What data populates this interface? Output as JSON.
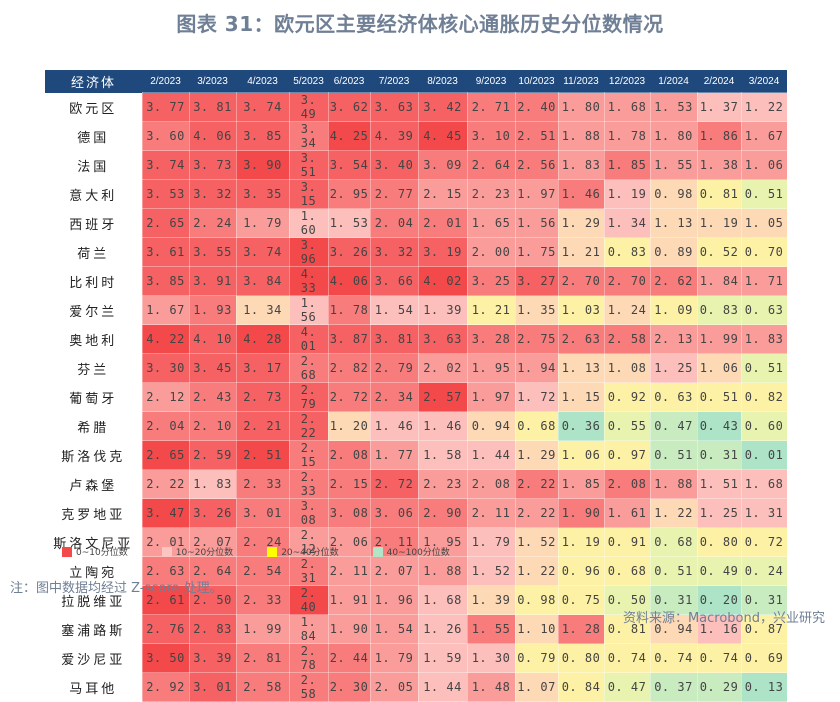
{
  "title": "图表 31：欧元区主要经济体核心通胀历史分位数情况",
  "table": {
    "row_header_label": "经济体",
    "columns": [
      "2/2023",
      "3/2023",
      "4/2023",
      "5/2023",
      "6/2023",
      "7/2023",
      "8/2023",
      "9/2023",
      "10/2023",
      "11/2023",
      "12/2023",
      "1/2024",
      "2/2024",
      "3/2024"
    ]
  },
  "legend": [
    {
      "label": "0~10分位数",
      "color": "#f4494b"
    },
    {
      "label": "10~20分位数",
      "color": "#fcc5c2"
    },
    {
      "label": "20~40分位数",
      "color": "#ffff00"
    },
    {
      "label": "40~100分位数",
      "color": "#b2e4c8"
    }
  ],
  "note": "注：图中数据均经过 Z-score 处理。",
  "source": "资料来源：Macrobond，兴业研究",
  "chart_data": {
    "type": "heatmap",
    "title": "图表 31：欧元区主要经济体核心通胀历史分位数情况",
    "xlabel": "",
    "ylabel": "经济体",
    "x": [
      "2/2023",
      "3/2023",
      "4/2023",
      "5/2023",
      "6/2023",
      "7/2023",
      "8/2023",
      "9/2023",
      "10/2023",
      "11/2023",
      "12/2023",
      "1/2024",
      "2/2024",
      "3/2024"
    ],
    "legend_position": "bottom",
    "legend": [
      "0~10分位数",
      "10~20分位数",
      "20~40分位数",
      "40~100分位数"
    ],
    "rows": [
      {
        "name": "欧元区",
        "values": [
          3.77,
          3.81,
          3.74,
          3.49,
          3.62,
          3.63,
          3.42,
          2.71,
          2.4,
          1.8,
          1.68,
          1.53,
          1.37,
          1.22
        ],
        "colors": [
          "b",
          "b",
          "b",
          "b",
          "b",
          "b",
          "b",
          "c",
          "c",
          "d",
          "d",
          "d",
          "e",
          "e"
        ]
      },
      {
        "name": "德国",
        "values": [
          3.6,
          4.06,
          3.85,
          3.34,
          4.25,
          4.39,
          4.45,
          3.1,
          2.51,
          1.88,
          1.78,
          1.8,
          1.86,
          1.67
        ],
        "colors": [
          "c",
          "b",
          "b",
          "c",
          "a",
          "b",
          "a",
          "c",
          "c",
          "d",
          "d",
          "d",
          "c",
          "d"
        ]
      },
      {
        "name": "法国",
        "values": [
          3.74,
          3.73,
          3.9,
          3.51,
          3.54,
          3.4,
          3.09,
          2.64,
          2.56,
          1.83,
          1.85,
          1.55,
          1.38,
          1.06
        ],
        "colors": [
          "b",
          "b",
          "a",
          "b",
          "b",
          "b",
          "c",
          "c",
          "c",
          "d",
          "c",
          "d",
          "d",
          "d"
        ]
      },
      {
        "name": "意大利",
        "values": [
          3.53,
          3.32,
          3.35,
          3.15,
          2.95,
          2.77,
          2.15,
          2.23,
          1.97,
          1.46,
          1.19,
          0.98,
          0.81,
          0.51
        ],
        "colors": [
          "b",
          "b",
          "b",
          "b",
          "c",
          "c",
          "d",
          "d",
          "d",
          "c",
          "e",
          "p",
          "y",
          "l"
        ]
      },
      {
        "name": "西班牙",
        "values": [
          2.65,
          2.24,
          1.79,
          1.6,
          1.53,
          2.04,
          2.01,
          1.65,
          1.56,
          1.29,
          1.34,
          1.13,
          1.19,
          1.05
        ],
        "colors": [
          "b",
          "c",
          "d",
          "e",
          "e",
          "c",
          "c",
          "d",
          "d",
          "p",
          "e",
          "p",
          "p",
          "p"
        ]
      },
      {
        "name": "荷兰",
        "values": [
          3.61,
          3.55,
          3.74,
          3.96,
          3.26,
          3.32,
          3.19,
          2.0,
          1.75,
          1.21,
          0.83,
          0.89,
          0.52,
          0.7
        ],
        "colors": [
          "b",
          "b",
          "b",
          "a",
          "b",
          "b",
          "b",
          "d",
          "d",
          "p",
          "y",
          "p",
          "y",
          "y"
        ]
      },
      {
        "name": "比利时",
        "values": [
          3.85,
          3.91,
          3.84,
          4.33,
          4.06,
          3.66,
          4.02,
          3.25,
          3.27,
          2.7,
          2.7,
          2.62,
          1.84,
          1.71
        ],
        "colors": [
          "b",
          "b",
          "b",
          "a",
          "a",
          "b",
          "a",
          "c",
          "b",
          "c",
          "c",
          "c",
          "d",
          "d"
        ]
      },
      {
        "name": "爱尔兰",
        "values": [
          1.67,
          1.93,
          1.34,
          1.56,
          1.78,
          1.54,
          1.39,
          1.21,
          1.35,
          1.03,
          1.24,
          1.09,
          0.83,
          0.63
        ],
        "colors": [
          "d",
          "c",
          "p",
          "e",
          "c",
          "e",
          "e",
          "y",
          "p",
          "y",
          "p",
          "y",
          "l",
          "l"
        ]
      },
      {
        "name": "奥地利",
        "values": [
          4.22,
          4.1,
          4.28,
          4.01,
          3.87,
          3.81,
          3.63,
          3.28,
          2.75,
          2.63,
          2.58,
          2.13,
          1.99,
          1.83
        ],
        "colors": [
          "a",
          "b",
          "a",
          "b",
          "b",
          "b",
          "b",
          "c",
          "c",
          "c",
          "c",
          "d",
          "d",
          "d"
        ]
      },
      {
        "name": "芬兰",
        "values": [
          3.3,
          3.45,
          3.17,
          2.68,
          2.82,
          2.79,
          2.02,
          1.95,
          1.94,
          1.13,
          1.08,
          1.25,
          1.06,
          0.51
        ],
        "colors": [
          "b",
          "b",
          "b",
          "c",
          "c",
          "c",
          "d",
          "d",
          "d",
          "p",
          "p",
          "e",
          "p",
          "l"
        ]
      },
      {
        "name": "葡萄牙",
        "values": [
          2.12,
          2.43,
          2.73,
          2.79,
          2.72,
          2.34,
          2.57,
          1.97,
          1.72,
          1.15,
          0.92,
          0.63,
          0.51,
          0.82
        ],
        "colors": [
          "d",
          "c",
          "b",
          "b",
          "c",
          "c",
          "a",
          "d",
          "e",
          "p",
          "y",
          "y",
          "y",
          "y"
        ]
      },
      {
        "name": "希腊",
        "values": [
          2.04,
          2.1,
          2.21,
          2.22,
          1.2,
          1.46,
          1.46,
          0.94,
          0.68,
          0.36,
          0.55,
          0.47,
          0.43,
          0.6
        ],
        "colors": [
          "c",
          "c",
          "b",
          "b",
          "p",
          "e",
          "e",
          "p",
          "y",
          "t",
          "l",
          "g",
          "t",
          "l"
        ]
      },
      {
        "name": "斯洛伐克",
        "values": [
          2.65,
          2.59,
          2.51,
          2.15,
          2.08,
          1.77,
          1.58,
          1.44,
          1.29,
          1.06,
          0.97,
          0.51,
          0.31,
          0.01
        ],
        "colors": [
          "a",
          "b",
          "a",
          "c",
          "c",
          "d",
          "e",
          "e",
          "p",
          "y",
          "y",
          "g",
          "g",
          "t"
        ]
      },
      {
        "name": "卢森堡",
        "values": [
          2.22,
          1.83,
          2.33,
          2.33,
          2.15,
          2.72,
          2.23,
          2.08,
          2.22,
          1.85,
          2.08,
          1.88,
          1.51,
          1.68
        ],
        "colors": [
          "d",
          "e",
          "c",
          "c",
          "c",
          "b",
          "d",
          "d",
          "c",
          "d",
          "c",
          "d",
          "e",
          "e"
        ]
      },
      {
        "name": "克罗地亚",
        "values": [
          3.47,
          3.26,
          3.01,
          3.08,
          3.08,
          3.06,
          2.9,
          2.11,
          2.22,
          1.9,
          1.61,
          1.22,
          1.25,
          1.31
        ],
        "colors": [
          "a",
          "b",
          "c",
          "c",
          "c",
          "c",
          "c",
          "d",
          "d",
          "c",
          "d",
          "p",
          "e",
          "e"
        ]
      },
      {
        "name": "斯洛文尼亚",
        "values": [
          2.01,
          2.07,
          2.24,
          2.12,
          2.06,
          2.11,
          1.95,
          1.79,
          1.52,
          1.19,
          0.91,
          0.68,
          0.8,
          0.72
        ],
        "colors": [
          "d",
          "d",
          "c",
          "d",
          "d",
          "c",
          "d",
          "e",
          "p",
          "y",
          "y",
          "l",
          "y",
          "y"
        ]
      },
      {
        "name": "立陶宛",
        "values": [
          2.63,
          2.64,
          2.54,
          2.31,
          2.11,
          2.07,
          1.88,
          1.52,
          1.22,
          0.96,
          0.68,
          0.51,
          0.49,
          0.24
        ],
        "colors": [
          "c",
          "c",
          "c",
          "c",
          "d",
          "d",
          "d",
          "e",
          "p",
          "y",
          "y",
          "l",
          "l",
          "l"
        ]
      },
      {
        "name": "拉脱维亚",
        "values": [
          2.61,
          2.5,
          2.33,
          2.4,
          1.91,
          1.96,
          1.68,
          1.39,
          0.98,
          0.75,
          0.5,
          0.31,
          0.2,
          0.31
        ],
        "colors": [
          "a",
          "b",
          "c",
          "a",
          "d",
          "d",
          "e",
          "p",
          "y",
          "y",
          "l",
          "g",
          "t",
          "g"
        ]
      },
      {
        "name": "塞浦路斯",
        "values": [
          2.76,
          2.83,
          1.99,
          1.84,
          1.9,
          1.54,
          1.26,
          1.55,
          1.1,
          1.28,
          0.81,
          0.94,
          1.16,
          0.87
        ],
        "colors": [
          "b",
          "b",
          "d",
          "d",
          "d",
          "d",
          "e",
          "c",
          "p",
          "c",
          "y",
          "p",
          "e",
          "y"
        ]
      },
      {
        "name": "爱沙尼亚",
        "values": [
          3.5,
          3.39,
          2.81,
          2.78,
          2.44,
          1.79,
          1.59,
          1.3,
          0.79,
          0.8,
          0.74,
          0.74,
          0.74,
          0.69
        ],
        "colors": [
          "a",
          "b",
          "c",
          "c",
          "c",
          "d",
          "e",
          "e",
          "y",
          "y",
          "y",
          "y",
          "y",
          "y"
        ]
      },
      {
        "name": "马耳他",
        "values": [
          2.92,
          3.01,
          2.58,
          2.58,
          2.3,
          2.05,
          1.44,
          1.48,
          1.07,
          0.84,
          0.47,
          0.37,
          0.29,
          0.13
        ],
        "colors": [
          "c",
          "b",
          "c",
          "c",
          "c",
          "d",
          "e",
          "d",
          "p",
          "y",
          "l",
          "g",
          "g",
          "t"
        ]
      }
    ]
  }
}
